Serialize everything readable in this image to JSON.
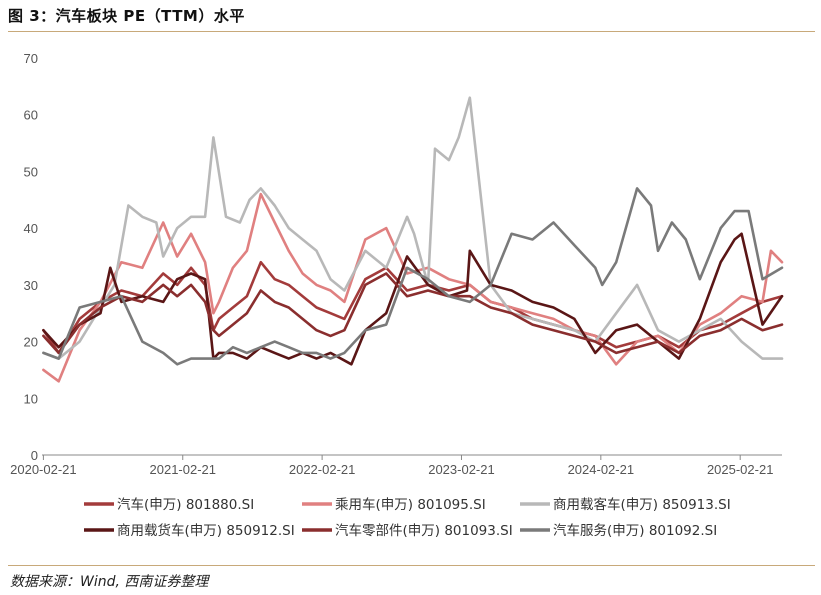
{
  "header": {
    "title": "图 3：汽车板块 PE（TTM）水平"
  },
  "source": {
    "text": "数据来源：Wind, 西南证券整理"
  },
  "colors": {
    "s1": "#a33b3b",
    "s2": "#e08080",
    "s3": "#b8b8b8",
    "s4": "#5a1616",
    "s5": "#8a2e2e",
    "s6": "#7a7a7a",
    "rule": "#c8a97a",
    "axis": "#888888",
    "text": "#555555"
  },
  "chart_data": {
    "type": "line",
    "title": "汽车板块 PE（TTM）水平",
    "xlabel": "",
    "ylabel": "",
    "ylim": [
      0,
      70
    ],
    "yticks": [
      "0",
      "10",
      "20",
      "30",
      "40",
      "50",
      "60",
      "70"
    ],
    "yvals": [
      0,
      10,
      20,
      30,
      40,
      50,
      60,
      70
    ],
    "xlim": [
      2020.13,
      2025.44
    ],
    "xticks": [
      {
        "label": "2020-02-21",
        "x": 2020.14
      },
      {
        "label": "2021-02-21",
        "x": 2021.14
      },
      {
        "label": "2022-02-21",
        "x": 2022.14
      },
      {
        "label": "2023-02-21",
        "x": 2023.14
      },
      {
        "label": "2024-02-21",
        "x": 2024.14
      },
      {
        "label": "2025-02-21",
        "x": 2025.14
      }
    ],
    "grid": false,
    "legend_position": "bottom",
    "series": [
      {
        "name": "汽车(申万) 801880.SI",
        "color_key": "s1",
        "x": [
          2020.14,
          2020.25,
          2020.4,
          2020.55,
          2020.7,
          2020.85,
          2021.0,
          2021.1,
          2021.2,
          2021.3,
          2021.36,
          2021.4,
          2021.5,
          2021.6,
          2021.7,
          2021.8,
          2021.9,
          2022.0,
          2022.1,
          2022.2,
          2022.3,
          2022.45,
          2022.6,
          2022.75,
          2022.9,
          2023.05,
          2023.2,
          2023.35,
          2023.5,
          2023.65,
          2023.8,
          2023.95,
          2024.1,
          2024.25,
          2024.4,
          2024.55,
          2024.7,
          2024.85,
          2025.0,
          2025.15,
          2025.3,
          2025.44
        ],
        "values": [
          22,
          18,
          24,
          27,
          29,
          28,
          32,
          30,
          33,
          30,
          22,
          24,
          26,
          28,
          34,
          31,
          30,
          28,
          26,
          25,
          24,
          31,
          33,
          29,
          30,
          29,
          30,
          27,
          26,
          24,
          23,
          22,
          21,
          19,
          20,
          21,
          19,
          22,
          23,
          25,
          27,
          28
        ]
      },
      {
        "name": "乘用车(申万) 801095.SI",
        "color_key": "s2",
        "x": [
          2020.14,
          2020.25,
          2020.4,
          2020.55,
          2020.7,
          2020.85,
          2021.0,
          2021.1,
          2021.2,
          2021.3,
          2021.36,
          2021.4,
          2021.5,
          2021.6,
          2021.7,
          2021.8,
          2021.9,
          2022.0,
          2022.1,
          2022.2,
          2022.3,
          2022.45,
          2022.6,
          2022.75,
          2022.9,
          2023.05,
          2023.2,
          2023.35,
          2023.5,
          2023.65,
          2023.8,
          2023.95,
          2024.1,
          2024.25,
          2024.4,
          2024.55,
          2024.7,
          2024.85,
          2025.0,
          2025.15,
          2025.3,
          2025.36,
          2025.44
        ],
        "values": [
          15,
          13,
          22,
          27,
          34,
          33,
          41,
          35,
          39,
          34,
          25,
          27,
          33,
          36,
          46,
          41,
          36,
          32,
          30,
          29,
          27,
          38,
          40,
          32,
          33,
          31,
          30,
          27,
          26,
          25,
          24,
          22,
          21,
          16,
          20,
          21,
          18,
          23,
          25,
          28,
          27,
          36,
          34
        ]
      },
      {
        "name": "商用载客车(申万) 850913.SI",
        "color_key": "s3",
        "x": [
          2020.14,
          2020.25,
          2020.4,
          2020.55,
          2020.65,
          2020.75,
          2020.85,
          2020.95,
          2021.0,
          2021.1,
          2021.2,
          2021.3,
          2021.36,
          2021.45,
          2021.55,
          2021.62,
          2021.7,
          2021.8,
          2021.9,
          2022.0,
          2022.1,
          2022.2,
          2022.3,
          2022.45,
          2022.6,
          2022.75,
          2022.8,
          2022.9,
          2022.95,
          2023.05,
          2023.12,
          2023.2,
          2023.35,
          2023.5,
          2023.65,
          2023.8,
          2023.95,
          2024.1,
          2024.25,
          2024.4,
          2024.55,
          2024.7,
          2024.85,
          2025.0,
          2025.15,
          2025.3,
          2025.44
        ],
        "values": [
          18,
          17,
          20,
          26,
          30,
          44,
          42,
          41,
          35,
          40,
          42,
          42,
          56,
          42,
          41,
          45,
          47,
          44,
          40,
          38,
          36,
          31,
          29,
          36,
          33,
          42,
          39,
          30,
          54,
          52,
          56,
          63,
          30,
          25,
          24,
          23,
          22,
          20,
          25,
          30,
          22,
          20,
          22,
          24,
          20,
          17,
          17
        ]
      },
      {
        "name": "商用载货车(申万) 850912.SI",
        "color_key": "s4",
        "x": [
          2020.14,
          2020.25,
          2020.4,
          2020.55,
          2020.62,
          2020.7,
          2020.85,
          2021.0,
          2021.1,
          2021.2,
          2021.3,
          2021.36,
          2021.4,
          2021.5,
          2021.6,
          2021.7,
          2021.8,
          2021.9,
          2022.0,
          2022.1,
          2022.2,
          2022.35,
          2022.45,
          2022.6,
          2022.75,
          2022.9,
          2023.05,
          2023.18,
          2023.2,
          2023.35,
          2023.5,
          2023.65,
          2023.8,
          2023.95,
          2024.1,
          2024.25,
          2024.4,
          2024.55,
          2024.7,
          2024.85,
          2025.0,
          2025.1,
          2025.15,
          2025.3,
          2025.44
        ],
        "values": [
          22,
          19,
          23,
          25,
          33,
          27,
          28,
          27,
          31,
          32,
          31,
          17,
          18,
          18,
          17,
          19,
          18,
          17,
          18,
          17,
          18,
          16,
          22,
          25,
          35,
          30,
          28,
          29,
          36,
          30,
          29,
          27,
          26,
          24,
          18,
          22,
          23,
          20,
          17,
          24,
          34,
          38,
          39,
          23,
          28
        ]
      },
      {
        "name": "汽车零部件(申万) 801093.SI",
        "color_key": "s5",
        "x": [
          2020.14,
          2020.25,
          2020.4,
          2020.55,
          2020.7,
          2020.85,
          2021.0,
          2021.1,
          2021.2,
          2021.3,
          2021.36,
          2021.4,
          2021.5,
          2021.6,
          2021.7,
          2021.8,
          2021.9,
          2022.0,
          2022.1,
          2022.2,
          2022.3,
          2022.45,
          2022.6,
          2022.75,
          2022.9,
          2023.05,
          2023.2,
          2023.35,
          2023.5,
          2023.65,
          2023.8,
          2023.95,
          2024.1,
          2024.25,
          2024.4,
          2024.55,
          2024.7,
          2024.85,
          2025.0,
          2025.15,
          2025.3,
          2025.44
        ],
        "values": [
          21,
          18,
          23,
          26,
          28,
          27,
          30,
          28,
          30,
          27,
          22,
          21,
          23,
          25,
          29,
          27,
          26,
          24,
          22,
          21,
          22,
          30,
          32,
          28,
          29,
          28,
          28,
          26,
          25,
          23,
          22,
          21,
          20,
          18,
          19,
          20,
          18,
          21,
          22,
          24,
          22,
          23
        ]
      },
      {
        "name": "汽车服务(申万) 801092.SI",
        "color_key": "s6",
        "x": [
          2020.14,
          2020.25,
          2020.4,
          2020.55,
          2020.7,
          2020.85,
          2021.0,
          2021.1,
          2021.2,
          2021.3,
          2021.4,
          2021.5,
          2021.6,
          2021.7,
          2021.8,
          2021.9,
          2022.0,
          2022.1,
          2022.2,
          2022.3,
          2022.45,
          2022.6,
          2022.75,
          2022.9,
          2023.05,
          2023.2,
          2023.35,
          2023.5,
          2023.65,
          2023.8,
          2023.95,
          2024.1,
          2024.15,
          2024.25,
          2024.4,
          2024.5,
          2024.55,
          2024.65,
          2024.75,
          2024.85,
          2025.0,
          2025.1,
          2025.2,
          2025.3,
          2025.44
        ],
        "values": [
          18,
          17,
          26,
          27,
          28,
          20,
          18,
          16,
          17,
          17,
          17,
          19,
          18,
          19,
          20,
          19,
          18,
          18,
          17,
          18,
          22,
          23,
          33,
          31,
          28,
          27,
          30,
          39,
          38,
          41,
          37,
          33,
          30,
          34,
          47,
          44,
          36,
          41,
          38,
          31,
          40,
          43,
          43,
          31,
          33
        ]
      }
    ]
  }
}
